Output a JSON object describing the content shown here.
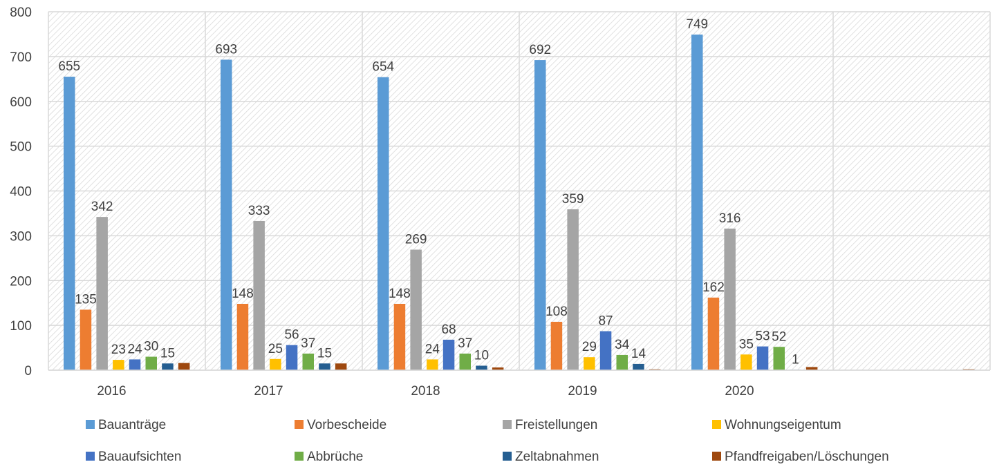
{
  "chart_data": {
    "type": "bar",
    "categories": [
      "2016",
      "2017",
      "2018",
      "2019",
      "2020",
      ""
    ],
    "ylim": [
      0,
      800
    ],
    "yticks": [
      0,
      100,
      200,
      300,
      400,
      500,
      600,
      700,
      800
    ],
    "grid": true,
    "legend_position": "bottom",
    "series": [
      {
        "name": "Bauanträge",
        "color": "#5b9bd5",
        "values": [
          655,
          693,
          654,
          692,
          749,
          0
        ],
        "labels": [
          "655",
          "693",
          "654",
          "692",
          "749",
          ""
        ]
      },
      {
        "name": "Vorbescheide",
        "color": "#ed7d31",
        "values": [
          135,
          148,
          148,
          108,
          162,
          0
        ],
        "labels": [
          "135",
          "148",
          "148",
          "108",
          "162",
          ""
        ]
      },
      {
        "name": "Freistellungen",
        "color": "#a5a5a5",
        "values": [
          342,
          333,
          269,
          359,
          316,
          0
        ],
        "labels": [
          "342",
          "333",
          "269",
          "359",
          "316",
          ""
        ]
      },
      {
        "name": "Wohnungseigentum",
        "color": "#ffc000",
        "values": [
          23,
          25,
          24,
          29,
          35,
          0
        ],
        "labels": [
          "23",
          "25",
          "24",
          "29",
          "35",
          ""
        ]
      },
      {
        "name": "Bauaufsichten",
        "color": "#4472c4",
        "values": [
          24,
          56,
          68,
          87,
          53,
          0
        ],
        "labels": [
          "24",
          "56",
          "68",
          "87",
          "53",
          ""
        ]
      },
      {
        "name": "Abbrüche",
        "color": "#70ad47",
        "values": [
          30,
          37,
          37,
          34,
          52,
          0
        ],
        "labels": [
          "30",
          "37",
          "37",
          "34",
          "52",
          ""
        ]
      },
      {
        "name": "Zeltabnahmen",
        "color": "#255e91",
        "values": [
          15,
          15,
          10,
          14,
          1,
          0
        ],
        "labels": [
          "15",
          "15",
          "10",
          "14",
          "1",
          ""
        ]
      },
      {
        "name": "Pfandfreigaben/Löschungen",
        "color": "#9e480e",
        "values": [
          16,
          15,
          6,
          2,
          7,
          2
        ],
        "labels": [
          "",
          "",
          "",
          "",
          "",
          ""
        ]
      }
    ]
  }
}
